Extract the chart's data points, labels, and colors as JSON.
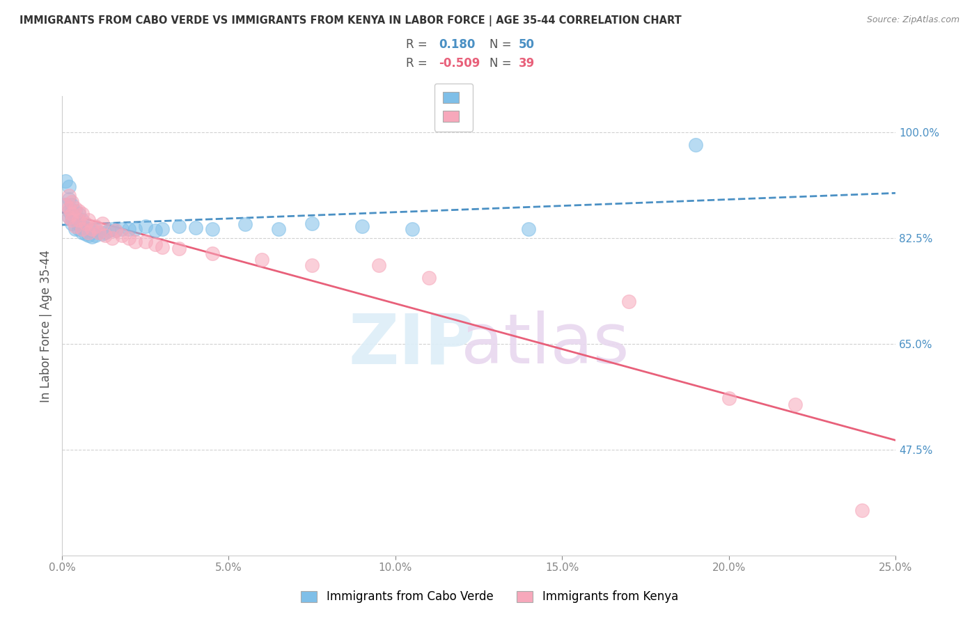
{
  "title": "IMMIGRANTS FROM CABO VERDE VS IMMIGRANTS FROM KENYA IN LABOR FORCE | AGE 35-44 CORRELATION CHART",
  "source": "Source: ZipAtlas.com",
  "ylabel": "In Labor Force | Age 35-44",
  "xlim": [
    0.0,
    0.25
  ],
  "ylim": [
    0.3,
    1.06
  ],
  "xticks": [
    0.0,
    0.05,
    0.1,
    0.15,
    0.2,
    0.25
  ],
  "xticklabels": [
    "0.0%",
    "5.0%",
    "10.0%",
    "15.0%",
    "20.0%",
    "25.0%"
  ],
  "yticks": [
    0.475,
    0.65,
    0.825,
    1.0
  ],
  "yticklabels": [
    "47.5%",
    "65.0%",
    "82.5%",
    "100.0%"
  ],
  "cabo_verde_color": "#7fbfe8",
  "kenya_color": "#f7a8bb",
  "cabo_verde_R": 0.18,
  "cabo_verde_N": 50,
  "kenya_R": -0.509,
  "kenya_N": 39,
  "cabo_verde_line_color": "#4a90c4",
  "kenya_line_color": "#e8607a",
  "cabo_verde_scatter_x": [
    0.001,
    0.001,
    0.002,
    0.002,
    0.002,
    0.002,
    0.003,
    0.003,
    0.003,
    0.003,
    0.004,
    0.004,
    0.004,
    0.005,
    0.005,
    0.005,
    0.005,
    0.006,
    0.006,
    0.006,
    0.007,
    0.007,
    0.008,
    0.008,
    0.009,
    0.009,
    0.01,
    0.01,
    0.011,
    0.012,
    0.013,
    0.014,
    0.015,
    0.016,
    0.018,
    0.02,
    0.022,
    0.025,
    0.028,
    0.03,
    0.035,
    0.04,
    0.045,
    0.055,
    0.065,
    0.075,
    0.09,
    0.105,
    0.14,
    0.19
  ],
  "cabo_verde_scatter_y": [
    0.88,
    0.92,
    0.86,
    0.87,
    0.89,
    0.91,
    0.85,
    0.86,
    0.87,
    0.88,
    0.84,
    0.855,
    0.87,
    0.84,
    0.848,
    0.855,
    0.865,
    0.835,
    0.845,
    0.855,
    0.832,
    0.842,
    0.83,
    0.84,
    0.828,
    0.838,
    0.83,
    0.84,
    0.835,
    0.832,
    0.835,
    0.838,
    0.84,
    0.838,
    0.84,
    0.84,
    0.84,
    0.845,
    0.838,
    0.84,
    0.845,
    0.842,
    0.84,
    0.848,
    0.84,
    0.85,
    0.845,
    0.84,
    0.84,
    0.98
  ],
  "kenya_scatter_x": [
    0.001,
    0.002,
    0.002,
    0.002,
    0.003,
    0.003,
    0.003,
    0.004,
    0.004,
    0.005,
    0.005,
    0.006,
    0.006,
    0.007,
    0.008,
    0.008,
    0.009,
    0.01,
    0.011,
    0.012,
    0.013,
    0.015,
    0.016,
    0.018,
    0.02,
    0.022,
    0.025,
    0.028,
    0.03,
    0.035,
    0.045,
    0.06,
    0.075,
    0.095,
    0.11,
    0.17,
    0.2,
    0.22,
    0.24
  ],
  "kenya_scatter_y": [
    0.88,
    0.86,
    0.875,
    0.895,
    0.855,
    0.865,
    0.885,
    0.845,
    0.875,
    0.855,
    0.87,
    0.84,
    0.865,
    0.85,
    0.835,
    0.855,
    0.84,
    0.845,
    0.835,
    0.85,
    0.83,
    0.825,
    0.838,
    0.83,
    0.825,
    0.82,
    0.82,
    0.815,
    0.81,
    0.808,
    0.8,
    0.79,
    0.78,
    0.78,
    0.76,
    0.72,
    0.56,
    0.55,
    0.375
  ]
}
